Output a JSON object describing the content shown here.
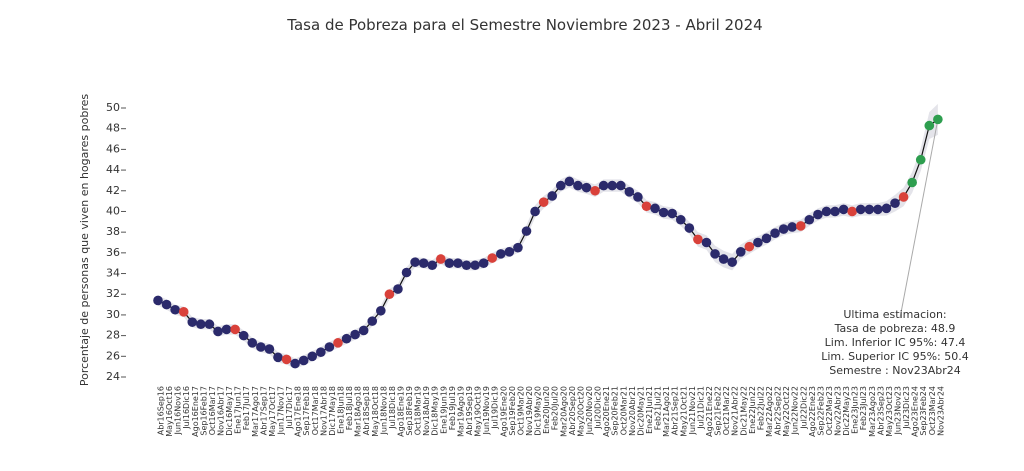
{
  "chart_data": {
    "type": "line",
    "title": "Tasa de Pobreza para el Semestre Noviembre 2023 - Abril 2024",
    "y_label": "Porcentaje de personas que viven en hogares pobres",
    "categories": [
      "Abr16Sep16",
      "May16Oct16",
      "Jun16Nov16",
      "Jul16Dic16",
      "Ago16Ene17",
      "Sep16Feb17",
      "Oct16Mar17",
      "Nov16Abr17",
      "Dic16May17",
      "Ene17Jun17",
      "Feb17Jul17",
      "Mar17Ago17",
      "Abr17Sep17",
      "May17Oct17",
      "Jun17Nov17",
      "Jul17Dic17",
      "Ago17Ene18",
      "Sep17Feb18",
      "Oct17Mar18",
      "Nov17Abr18",
      "Dic17May18",
      "Ene18Jun18",
      "Feb18Jul18",
      "Mar18Ago18",
      "Abr18Sep18",
      "May18Oct18",
      "Jun18Nov18",
      "Jul18Dic18",
      "Ago18Ene19",
      "Sep18Feb19",
      "Oct18Mar19",
      "Nov18Abr19",
      "Dic18May19",
      "Ene19Jun19",
      "Feb19Jul19",
      "Mar19Ago19",
      "Abr19Sep19",
      "May19Oct19",
      "Jun19Nov19",
      "Jul19Dic19",
      "Ago19Ene20",
      "Sep19Feb20",
      "Oct19Mar20",
      "Nov19Abr20",
      "Dic19May20",
      "Ene20Jun20",
      "Feb20Jul20",
      "Mar20Ago20",
      "Abr20Sep20",
      "May20Oct20",
      "Jun20Nov20",
      "Jul20Dic20",
      "Ago20Ene21",
      "Sep20Feb21",
      "Oct20Mar21",
      "Nov20Abr21",
      "Dic20May21",
      "Ene21Jun21",
      "Feb21Jul21",
      "Mar21Ago21",
      "Abr21Sep21",
      "May21Oct21",
      "Jun21Nov21",
      "Jul21Dic21",
      "Ago21Ene22",
      "Sep21Feb22",
      "Oct21Mar22",
      "Nov21Abr22",
      "Dic21May22",
      "Ene22Jun22",
      "Feb22Jul22",
      "Mar22Ago22",
      "Abr22Sep22",
      "May22Oct22",
      "Jun22Nov22",
      "Jul22Dic22",
      "Ago22Ene23",
      "Sep22Feb23",
      "Oct22Mar23",
      "Nov22Abr23",
      "Dic22May23",
      "Ene23Jun23",
      "Feb23Jul23",
      "Mar23Ago23",
      "Abr23Sep23",
      "May23Oct23",
      "Jun23Nov23",
      "Jul23Dic23",
      "Ago23Ene24",
      "Sep23Feb24",
      "Oct23Mar24",
      "Nov23Abr24"
    ],
    "values": [
      31.4,
      31.0,
      30.5,
      30.3,
      29.3,
      29.1,
      29.1,
      28.4,
      28.6,
      28.6,
      28.0,
      27.3,
      26.9,
      26.7,
      25.9,
      25.7,
      25.3,
      25.6,
      26.0,
      26.4,
      26.9,
      27.3,
      27.7,
      28.1,
      28.5,
      29.4,
      30.4,
      32.0,
      32.5,
      34.1,
      35.1,
      35.0,
      34.8,
      35.4,
      35.0,
      35.0,
      34.8,
      34.8,
      35.0,
      35.5,
      35.9,
      36.1,
      36.5,
      38.1,
      40.0,
      40.9,
      41.5,
      42.5,
      42.9,
      42.5,
      42.3,
      42.0,
      42.5,
      42.5,
      42.5,
      41.9,
      41.4,
      40.5,
      40.3,
      39.9,
      39.8,
      39.2,
      38.4,
      37.3,
      37.0,
      35.9,
      35.4,
      35.1,
      36.1,
      36.6,
      37.0,
      37.4,
      37.9,
      38.3,
      38.5,
      38.6,
      39.2,
      39.7,
      40.0,
      40.0,
      40.2,
      40.0,
      40.2,
      40.2,
      40.2,
      40.3,
      40.8,
      41.4,
      42.8,
      45.0,
      48.3,
      48.9
    ],
    "ci_halfwidth": [
      0.5,
      0.5,
      0.5,
      0.5,
      0.5,
      0.5,
      0.5,
      0.5,
      0.5,
      0.5,
      0.5,
      0.5,
      0.5,
      0.5,
      0.5,
      0.5,
      0.5,
      0.5,
      0.5,
      0.5,
      0.5,
      0.5,
      0.5,
      0.5,
      0.5,
      0.5,
      0.5,
      0.5,
      0.5,
      0.5,
      0.5,
      0.5,
      0.5,
      0.5,
      0.5,
      0.5,
      0.5,
      0.5,
      0.5,
      0.5,
      0.5,
      0.5,
      0.5,
      0.6,
      0.6,
      0.6,
      0.6,
      0.6,
      0.6,
      0.6,
      0.6,
      0.6,
      0.6,
      0.6,
      0.6,
      0.6,
      0.6,
      0.6,
      0.6,
      0.6,
      0.6,
      0.6,
      0.6,
      0.7,
      0.7,
      0.8,
      0.8,
      0.8,
      0.7,
      0.7,
      0.6,
      0.6,
      0.6,
      0.6,
      0.6,
      0.6,
      0.6,
      0.6,
      0.6,
      0.6,
      0.6,
      0.6,
      0.6,
      0.6,
      0.6,
      0.7,
      0.8,
      0.9,
      1.0,
      1.1,
      1.3,
      1.5
    ],
    "point_colors": [
      "#2b2a6b",
      "#2b2a6b",
      "#2b2a6b",
      "#d9413a",
      "#2b2a6b",
      "#2b2a6b",
      "#2b2a6b",
      "#2b2a6b",
      "#2b2a6b",
      "#d9413a",
      "#2b2a6b",
      "#2b2a6b",
      "#2b2a6b",
      "#2b2a6b",
      "#2b2a6b",
      "#d9413a",
      "#2b2a6b",
      "#2b2a6b",
      "#2b2a6b",
      "#2b2a6b",
      "#2b2a6b",
      "#d9413a",
      "#2b2a6b",
      "#2b2a6b",
      "#2b2a6b",
      "#2b2a6b",
      "#2b2a6b",
      "#d9413a",
      "#2b2a6b",
      "#2b2a6b",
      "#2b2a6b",
      "#2b2a6b",
      "#2b2a6b",
      "#d9413a",
      "#2b2a6b",
      "#2b2a6b",
      "#2b2a6b",
      "#2b2a6b",
      "#2b2a6b",
      "#d9413a",
      "#2b2a6b",
      "#2b2a6b",
      "#2b2a6b",
      "#2b2a6b",
      "#2b2a6b",
      "#d9413a",
      "#2b2a6b",
      "#2b2a6b",
      "#2b2a6b",
      "#2b2a6b",
      "#2b2a6b",
      "#d9413a",
      "#2b2a6b",
      "#2b2a6b",
      "#2b2a6b",
      "#2b2a6b",
      "#2b2a6b",
      "#d9413a",
      "#2b2a6b",
      "#2b2a6b",
      "#2b2a6b",
      "#2b2a6b",
      "#2b2a6b",
      "#d9413a",
      "#2b2a6b",
      "#2b2a6b",
      "#2b2a6b",
      "#2b2a6b",
      "#2b2a6b",
      "#d9413a",
      "#2b2a6b",
      "#2b2a6b",
      "#2b2a6b",
      "#2b2a6b",
      "#2b2a6b",
      "#d9413a",
      "#2b2a6b",
      "#2b2a6b",
      "#2b2a6b",
      "#2b2a6b",
      "#2b2a6b",
      "#d9413a",
      "#2b2a6b",
      "#2b2a6b",
      "#2b2a6b",
      "#2b2a6b",
      "#2b2a6b",
      "#d9413a",
      "#2e9e4f",
      "#2e9e4f",
      "#2e9e4f",
      "#2e9e4f"
    ],
    "line_color": "#111111",
    "band_color": "#e4e4ea",
    "ylim": [
      24,
      50
    ],
    "yticks": [
      24,
      26,
      28,
      30,
      32,
      34,
      36,
      38,
      40,
      42,
      44,
      46,
      48,
      50
    ],
    "annotation": [
      "Ultima estimacion:",
      "Tasa de pobreza:  48.9",
      "Lim. Inferior IC 95%:  47.4",
      "Lim. Superior IC 95%:  50.4",
      "Semestre : Nov23Abr24"
    ]
  }
}
